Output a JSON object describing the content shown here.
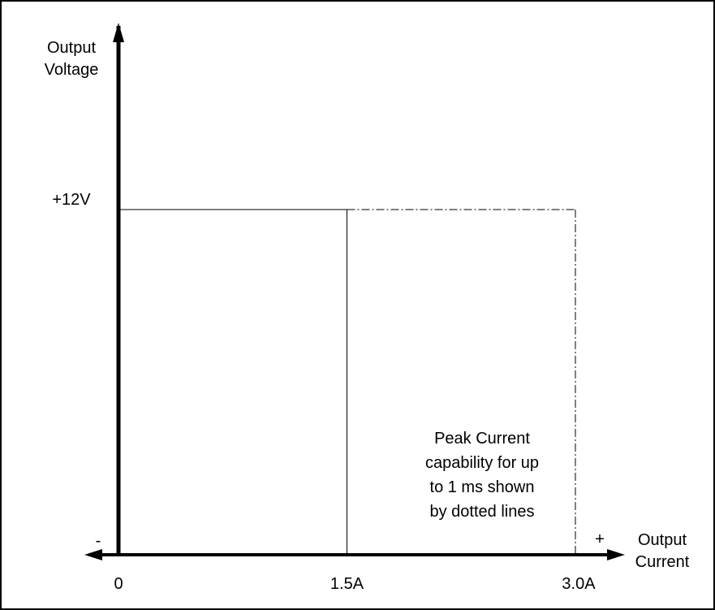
{
  "chart_data": {
    "type": "line",
    "title": "",
    "ylabel_lines": [
      "Output",
      "Voltage"
    ],
    "xlabel_lines": [
      "Output",
      "Current"
    ],
    "y_tick_label": "+12V",
    "x_tick_labels": [
      "0",
      "1.5A",
      "3.0A"
    ],
    "x_minus_label": "-",
    "x_plus_label": "+",
    "xlim": [
      0,
      3.0
    ],
    "ylim": [
      0,
      12
    ],
    "continuous_rating": {
      "current_max": 1.5,
      "voltage": 12,
      "line_style": "solid"
    },
    "peak_rating": {
      "current_max": 3.0,
      "voltage": 12,
      "line_style": "dash-dot"
    },
    "annotation_lines": [
      "Peak Current",
      "capability for up",
      "to 1 ms shown",
      "by dotted lines"
    ]
  }
}
